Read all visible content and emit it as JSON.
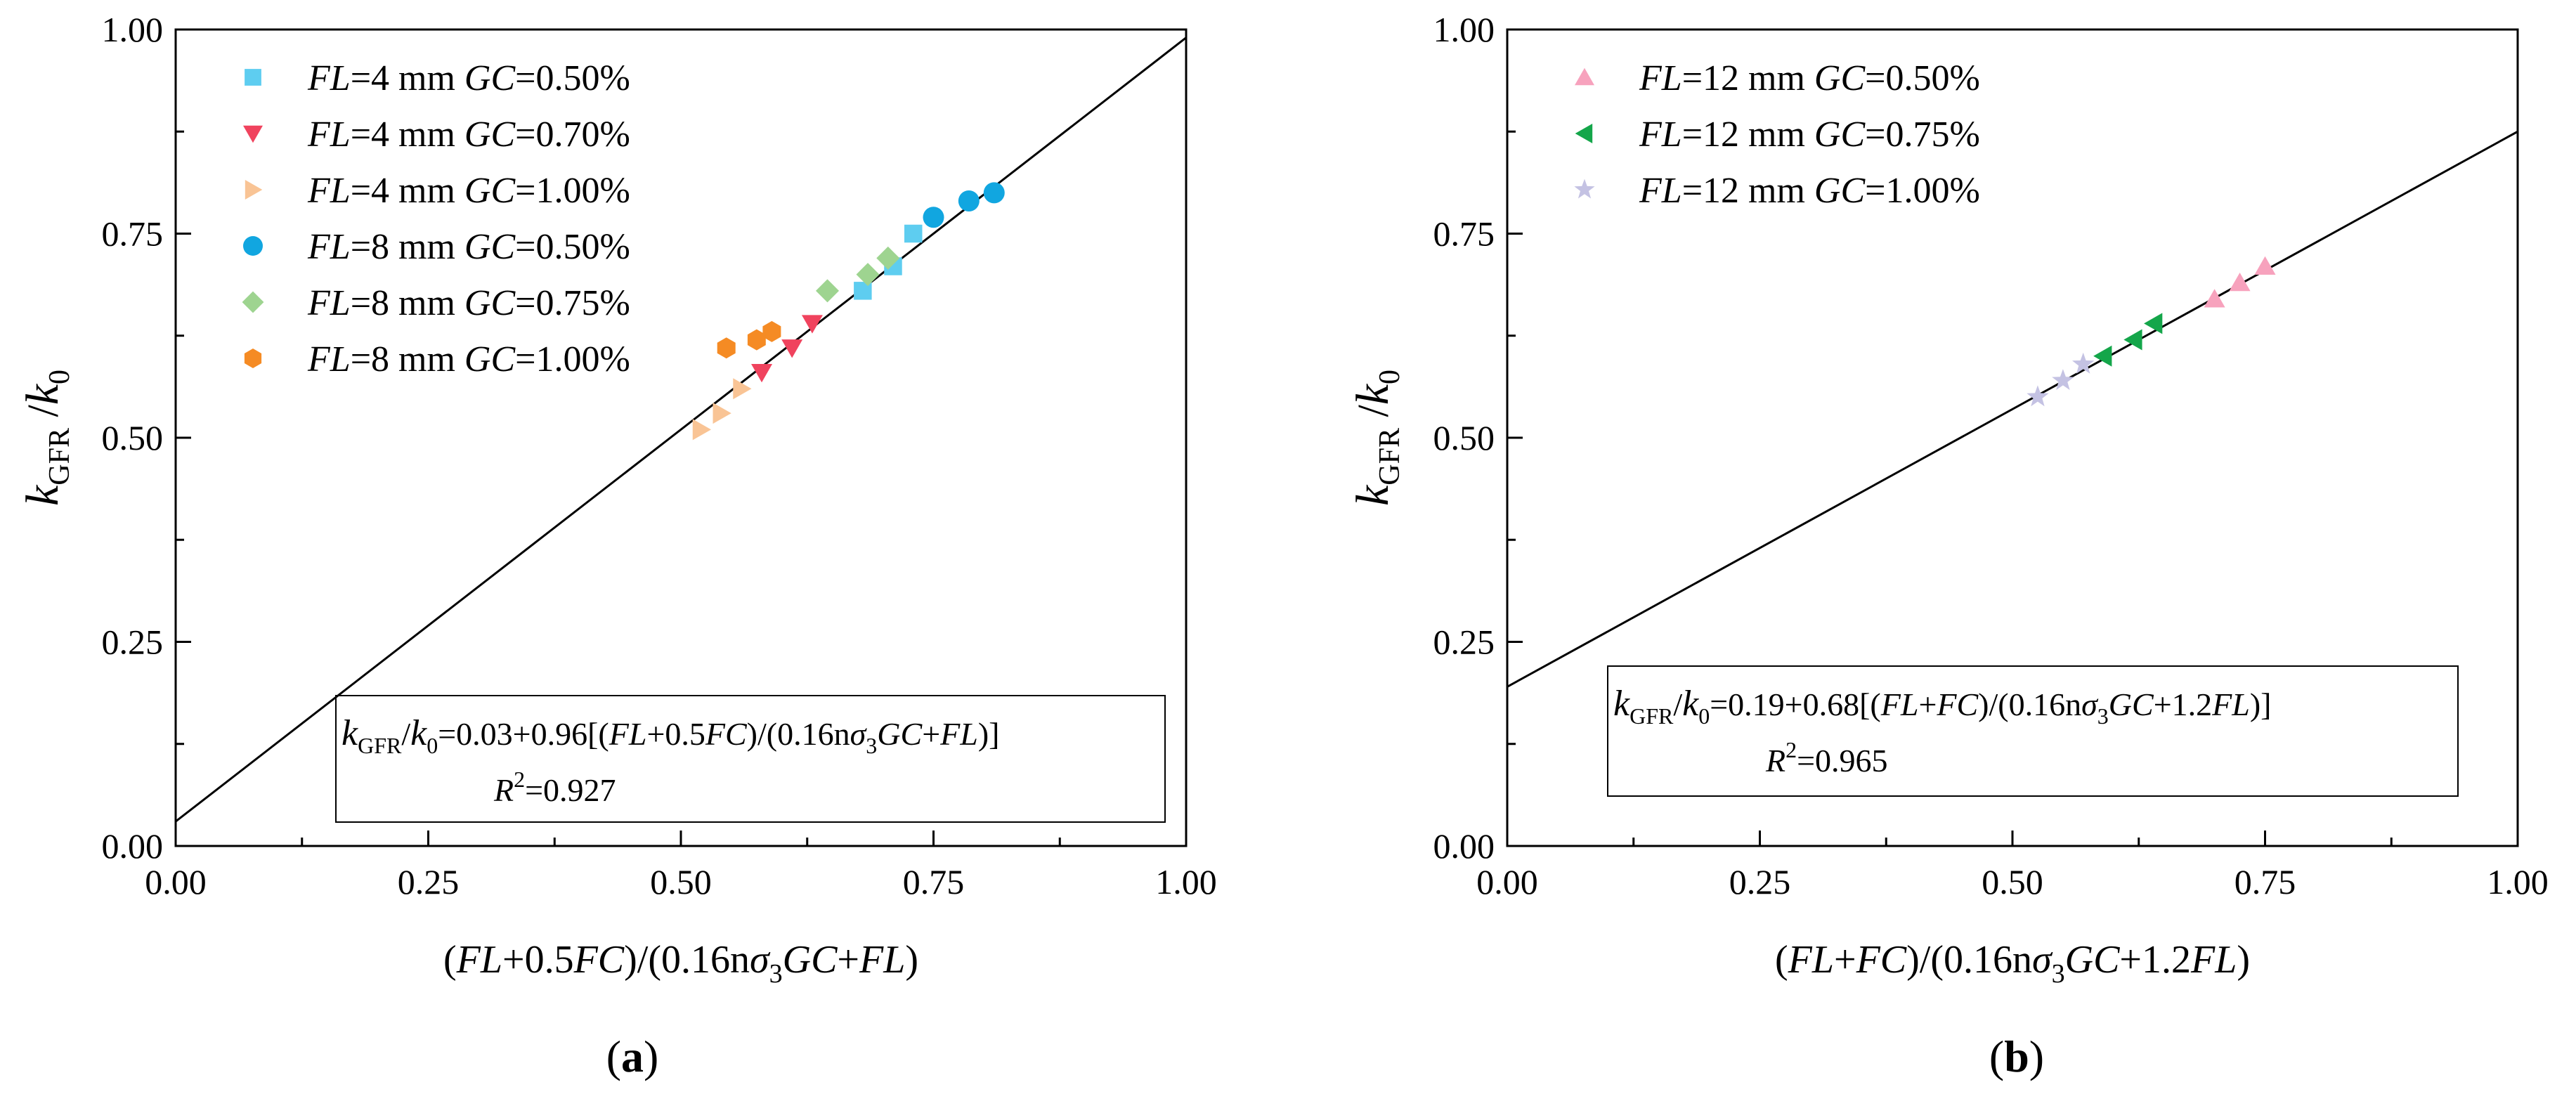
{
  "figure": {
    "panels": [
      "a",
      "b"
    ]
  },
  "chart_data": [
    {
      "id": "a",
      "type": "scatter",
      "panel_label": "a",
      "xlim": [
        0,
        1
      ],
      "ylim": [
        0,
        1
      ],
      "x_ticks": [
        "0.00",
        "0.25",
        "0.50",
        "0.75",
        "1.00"
      ],
      "y_ticks": [
        "0.00",
        "0.25",
        "0.50",
        "0.75",
        "1.00"
      ],
      "ylabel": {
        "k": "k",
        "sub": "GFR",
        "slash": " /",
        "k0": "k",
        "k0sub": "0"
      },
      "xlabel": {
        "p1": "(",
        "i1": "FL",
        "p2": "+0.5",
        "i2": "FC",
        "p3": ")/(0.16n",
        "sigma": "σ",
        "sub3": "3",
        "i3": "GC",
        "p4": "+",
        "i4": "FL",
        "p5": ")"
      },
      "equation": {
        "k": "k",
        "sub": "GFR",
        "mid": "/",
        "k0": "k",
        "k0sub": "0",
        "rest1": "=0.03+0.96[(",
        "i1": "FL",
        "r2": "+0.5",
        "i2": "FC",
        "r3": ")/(0.16n",
        "sigma": "σ",
        "sub3": "3",
        "i3": "GC",
        "r4": "+",
        "i4": "FL",
        "r5": ")]",
        "r2label": "R",
        "r2sup": "2",
        "r2val": "=0.927"
      },
      "fit": {
        "intercept": 0.03,
        "slope": 0.96
      },
      "series": [
        {
          "name": "FL=4 mm GC=0.50%",
          "fl": "4",
          "gc": "0.50%",
          "marker": "square",
          "color": "#5ecdf0",
          "points": [
            [
              0.73,
              0.75
            ],
            [
              0.71,
              0.71
            ],
            [
              0.68,
              0.68
            ]
          ]
        },
        {
          "name": "FL=4 mm GC=0.70%",
          "fl": "4",
          "gc": "0.70%",
          "marker": "triangle-down",
          "color": "#f0435e",
          "points": [
            [
              0.63,
              0.64
            ],
            [
              0.61,
              0.61
            ],
            [
              0.58,
              0.58
            ]
          ]
        },
        {
          "name": "FL=4 mm GC=1.00%",
          "fl": "4",
          "gc": "1.00%",
          "marker": "triangle-right",
          "color": "#f9c495",
          "points": [
            [
              0.56,
              0.56
            ],
            [
              0.54,
              0.53
            ],
            [
              0.52,
              0.51
            ]
          ]
        },
        {
          "name": "FL=8 mm GC=0.50%",
          "fl": "8",
          "gc": "0.50%",
          "marker": "circle",
          "color": "#11a6e0",
          "points": [
            [
              0.81,
              0.8
            ],
            [
              0.785,
              0.79
            ],
            [
              0.75,
              0.77
            ]
          ]
        },
        {
          "name": "FL=8 mm GC=0.75%",
          "fl": "8",
          "gc": "0.75%",
          "marker": "diamond",
          "color": "#9ed490",
          "points": [
            [
              0.705,
              0.72
            ],
            [
              0.685,
              0.7
            ],
            [
              0.645,
              0.68
            ]
          ]
        },
        {
          "name": "FL=8 mm GC=1.00%",
          "fl": "8",
          "gc": "1.00%",
          "marker": "hexagon",
          "color": "#f58b24",
          "points": [
            [
              0.59,
              0.63
            ],
            [
              0.575,
              0.62
            ],
            [
              0.545,
              0.61
            ]
          ]
        }
      ]
    },
    {
      "id": "b",
      "type": "scatter",
      "panel_label": "b",
      "xlim": [
        0,
        1
      ],
      "ylim": [
        0,
        1
      ],
      "x_ticks": [
        "0.00",
        "0.25",
        "0.50",
        "0.75",
        "1.00"
      ],
      "y_ticks": [
        "0.00",
        "0.25",
        "0.50",
        "0.75",
        "1.00"
      ],
      "ylabel": {
        "k": "k",
        "sub": "GFR",
        "slash": " /",
        "k0": "k",
        "k0sub": "0"
      },
      "xlabel": {
        "p1": "(",
        "i1": "FL",
        "p2": "+",
        "i2": "FC",
        "p3": ")/(0.16n",
        "sigma": "σ",
        "sub3": "3",
        "i3": "GC",
        "p4": "+1.2",
        "i4": "FL",
        "p5": ")"
      },
      "equation": {
        "k": "k",
        "sub": "GFR",
        "mid": "/",
        "k0": "k",
        "k0sub": "0",
        "rest1": "=0.19+0.68[(",
        "i1": "FL",
        "r2": "+",
        "i2": "FC",
        "r3": ")/(0.16n",
        "sigma": "σ",
        "sub3": "3",
        "i3": "GC",
        "r4": "+1.2",
        "i4": "FL",
        "r5": ")]",
        "r2label": "R",
        "r2sup": "2",
        "r2val": "=0.965"
      },
      "fit": {
        "intercept": 0.195,
        "slope": 0.68
      },
      "series": [
        {
          "name": "FL=12 mm GC=0.50%",
          "fl": "12",
          "gc": "0.50%",
          "marker": "triangle-up",
          "color": "#f7a2bd",
          "points": [
            [
              0.75,
              0.71
            ],
            [
              0.725,
              0.69
            ],
            [
              0.7,
              0.67
            ]
          ]
        },
        {
          "name": "FL=12 mm GC=0.75%",
          "fl": "12",
          "gc": "0.75%",
          "marker": "triangle-left",
          "color": "#14a64a",
          "points": [
            [
              0.64,
              0.64
            ],
            [
              0.62,
              0.62
            ],
            [
              0.59,
              0.6
            ]
          ]
        },
        {
          "name": "FL=12 mm GC=1.00%",
          "fl": "12",
          "gc": "1.00%",
          "marker": "star",
          "color": "#c4c2e3",
          "points": [
            [
              0.57,
              0.59
            ],
            [
              0.55,
              0.57
            ],
            [
              0.525,
              0.55
            ]
          ]
        }
      ]
    }
  ]
}
